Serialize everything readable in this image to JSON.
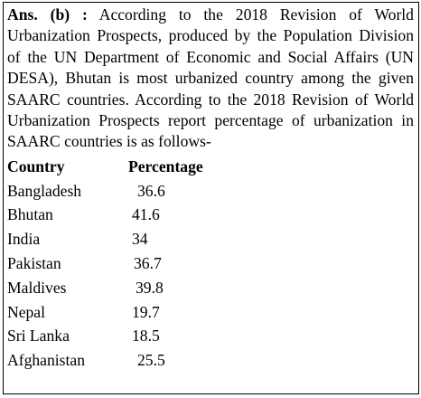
{
  "answer": {
    "label": "Ans. (b) :",
    "text": "According to the 2018 Revision of World Urbanization Prospects, produced by the Population Division of the UN Department of Economic and Social Affairs (UN DESA), Bhutan is most urbanized country among the given SAARC countries.  According to the 2018 Revision of World Urbanization Prospects report percentage of urbanization in SAARC countries is as follows-"
  },
  "table": {
    "header": [
      "Country",
      "Percentage"
    ],
    "rows": [
      [
        "Bangladesh",
        36.6
      ],
      [
        "Bhutan",
        41.6
      ],
      [
        "India",
        34
      ],
      [
        "Pakistan",
        36.7
      ],
      [
        "Maldives",
        39.8
      ],
      [
        "Nepal",
        19.7
      ],
      [
        "Sri Lanka",
        18.5
      ],
      [
        "Afghanistan",
        25.5
      ]
    ]
  }
}
